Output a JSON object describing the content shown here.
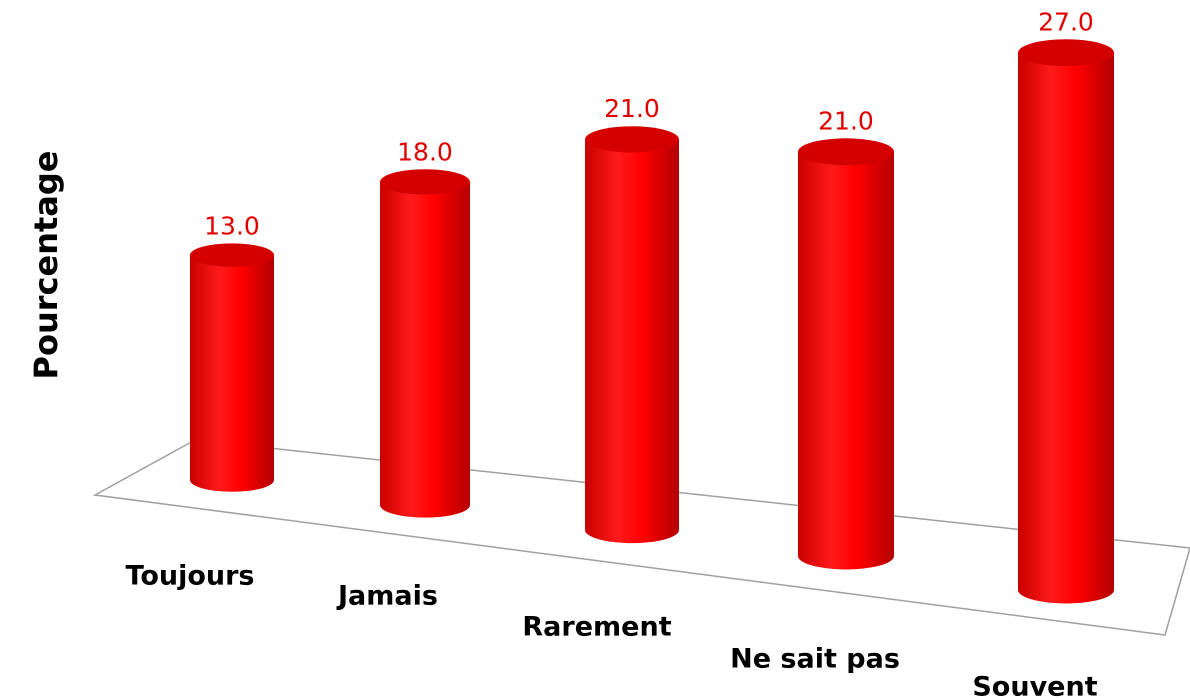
{
  "chart_data": {
    "type": "bar",
    "y_label": "Pourcentage",
    "categories": [
      "Toujours",
      "Jamais",
      "Rarement",
      "Ne sait pas",
      "Souvent"
    ],
    "values": [
      13,
      18,
      21,
      21,
      27
    ],
    "value_labels": [
      "13.0",
      "18.0",
      "21.0",
      "21.0",
      "27.0"
    ],
    "color": "#ff0000"
  }
}
